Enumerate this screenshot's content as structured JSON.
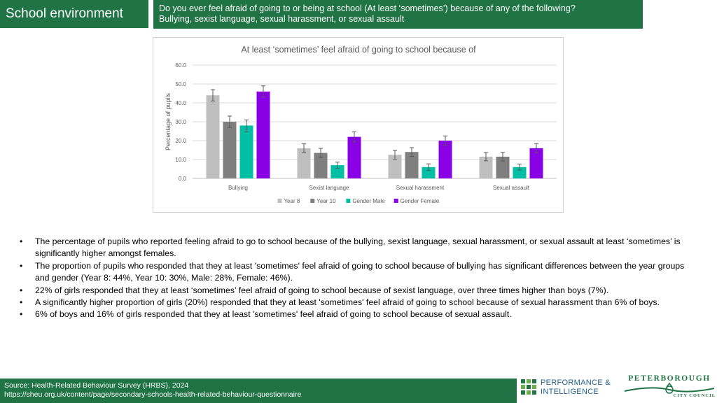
{
  "header": {
    "section_title": "School environment",
    "question_line1": "Do you ever feel afraid of going to or being at school  (At least ‘sometimes’) because of any of the following?",
    "question_line2": "Bullying, sexist language, sexual harassment, or sexual assault"
  },
  "chart_data": {
    "type": "bar",
    "title": "At least ‘sometimes’ feel afraid of going to school because of",
    "xlabel": "",
    "ylabel": "Percentage of pupils",
    "ylim": [
      0,
      60
    ],
    "yticks": [
      "0.0",
      "10.0",
      "20.0",
      "30.0",
      "40.0",
      "50.0",
      "60.0"
    ],
    "categories": [
      "Bullying",
      "Sexist language",
      "Sexual harassment",
      "Sexual assault"
    ],
    "series": [
      {
        "name": "Year 8",
        "color": "#bfbfbf",
        "values": [
          44,
          16,
          12.5,
          11.5
        ],
        "error": [
          3,
          2.3,
          2.3,
          2.2
        ]
      },
      {
        "name": "Year 10",
        "color": "#7f7f7f",
        "values": [
          30,
          13.5,
          14,
          11.5
        ],
        "error": [
          3,
          2.4,
          2.3,
          2.3
        ]
      },
      {
        "name": "Gender Male",
        "color": "#00bfa5",
        "values": [
          28,
          7,
          6,
          6
        ],
        "error": [
          3,
          1.6,
          1.7,
          1.6
        ]
      },
      {
        "name": "Gender Female",
        "color": "#8a00e6",
        "values": [
          46,
          22,
          20,
          16
        ],
        "error": [
          3,
          2.7,
          2.5,
          2.4
        ]
      }
    ],
    "grid": true,
    "legend_position": "bottom"
  },
  "bullets": [
    "The percentage of pupils who reported feeling afraid to go to school because of the bullying, sexist language, sexual harassment, or sexual assault at least ‘sometimes’ is significantly higher amongst females.",
    "The proportion of pupils who responded that they at least 'sometimes' feel afraid of going to school because of bullying has significant differences between the year groups and gender (Year 8: 44%, Year 10: 30%, Male: 28%, Female: 46%).",
    "22% of girls responded that they at least ‘sometimes’ feel afraid of going to school because of sexist language, over three times higher than boys (7%).",
    "A significantly higher proportion of girls (20%) responded that they at least 'sometimes' feel afraid of going to school because of sexual harassment than 6% of boys.",
    "6% of boys and 16% of girls responded that they at least 'sometimes' feel afraid of going to school because of sexual assault."
  ],
  "footer": {
    "source_line": "Source: Health-Related Behaviour Survey (HRBS), 2024",
    "url_line": "https://sheu.org.uk/content/page/secondary-schools-health-related-behaviour-questionnaire"
  },
  "logos": {
    "pi_line1": "PERFORMANCE &",
    "pi_line2": "INTELLIGENCE",
    "pcc_line1": "PETERBOROUGH",
    "pcc_line2": "CITY COUNCIL"
  }
}
